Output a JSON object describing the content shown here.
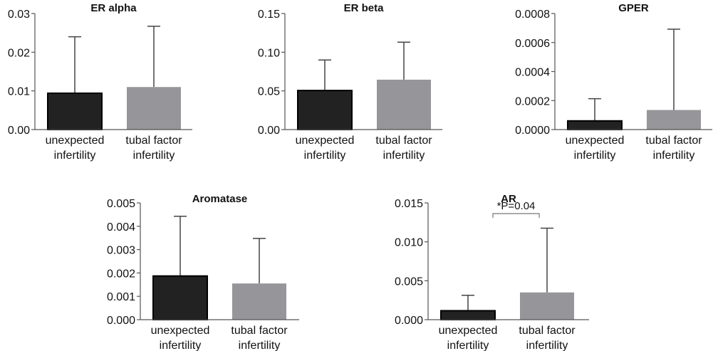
{
  "chart_data": [
    {
      "type": "bar",
      "title": "ER alpha",
      "categories": [
        "unexpected\ninfertility",
        "tubal factor\ninfertility"
      ],
      "values": [
        0.0094,
        0.011
      ],
      "error_upper": [
        0.024,
        0.0267
      ],
      "yticks": [
        "0.00",
        "0.01",
        "0.02",
        "0.03"
      ],
      "ylim": [
        0,
        0.03
      ],
      "xlabel": "",
      "ylabel": "",
      "grid": false
    },
    {
      "type": "bar",
      "title": "ER beta",
      "categories": [
        "unexpected\ninfertility",
        "tubal factor\ninfertility"
      ],
      "values": [
        0.0505,
        0.0645
      ],
      "error_upper": [
        0.09,
        0.113
      ],
      "yticks": [
        "0.00",
        "0.05",
        "0.10",
        "0.15"
      ],
      "ylim": [
        0,
        0.15
      ],
      "xlabel": "",
      "ylabel": "",
      "grid": false
    },
    {
      "type": "bar",
      "title": "GPER",
      "categories": [
        "unexpected\ninfertility",
        "tubal factor\ninfertility"
      ],
      "values": [
        6e-05,
        0.000135
      ],
      "error_upper": [
        0.000213,
        0.000692
      ],
      "yticks": [
        "0.0000",
        "0.0002",
        "0.0004",
        "0.0006",
        "0.0008"
      ],
      "ylim": [
        0,
        0.0008
      ],
      "xlabel": "",
      "ylabel": "",
      "grid": false
    },
    {
      "type": "bar",
      "title": "Aromatase",
      "categories": [
        "unexpected\ninfertility",
        "tubal factor\ninfertility"
      ],
      "values": [
        0.00187,
        0.00155
      ],
      "error_upper": [
        0.00443,
        0.00348
      ],
      "yticks": [
        "0.000",
        "0.001",
        "0.002",
        "0.003",
        "0.004",
        "0.005"
      ],
      "ylim": [
        0,
        0.005
      ],
      "xlabel": "",
      "ylabel": "",
      "grid": false
    },
    {
      "type": "bar",
      "title": "AR",
      "categories": [
        "unexpected\ninfertility",
        "tubal factor\ninfertility"
      ],
      "values": [
        0.00115,
        0.0035
      ],
      "error_upper": [
        0.00313,
        0.01175
      ],
      "yticks": [
        "0.000",
        "0.005",
        "0.010",
        "0.015"
      ],
      "ylim": [
        0,
        0.015
      ],
      "xlabel": "",
      "ylabel": "",
      "grid": false,
      "annotation": "*P=0.04"
    }
  ],
  "colors": {
    "unexpected": "#222222",
    "tubal": "#969599",
    "axis": "#555555",
    "errorbar": "#444444"
  }
}
